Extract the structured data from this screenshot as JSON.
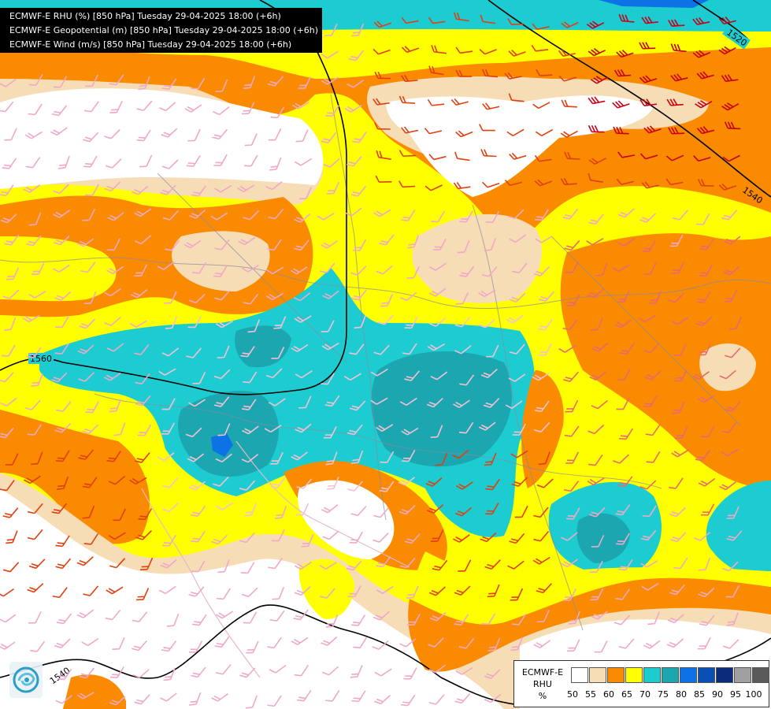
{
  "header": {
    "line1": "ECMWF-E RHU (%) [850 hPa] Tuesday 29-04-2025 18:00 (+6h)",
    "line2": "ECMWF-E Geopotential (m) [850 hPa] Tuesday 29-04-2025 18:00 (+6h)",
    "line3": "ECMWF-E Wind (m/s) [850 hPa] Tuesday 29-04-2025 18:00 (+6h)"
  },
  "legend": {
    "model_label": "ECMWF-E",
    "variable_label": "RHU",
    "unit_label": "%",
    "colors": [
      "#ffffff",
      "#f6ddb5",
      "#fa8a00",
      "#ffff00",
      "#1cccd1",
      "#1ca6b0",
      "#0d72e6",
      "#0a4fb3",
      "#0a2a7a",
      "#a0a0a0",
      "#5a5a5a"
    ],
    "ticks": [
      "50",
      "55",
      "60",
      "65",
      "70",
      "75",
      "80",
      "85",
      "90",
      "95",
      "100"
    ]
  },
  "isolines": {
    "labels": [
      "1520",
      "1540",
      "1560",
      "1540"
    ]
  },
  "palette": {
    "white": "#ffffff",
    "tan": "#f6ddb5",
    "orange": "#fa8a00",
    "yellow": "#ffff00",
    "cyan": "#1cccd1",
    "teal": "#1ca6b0",
    "blue": "#0d72e6"
  }
}
